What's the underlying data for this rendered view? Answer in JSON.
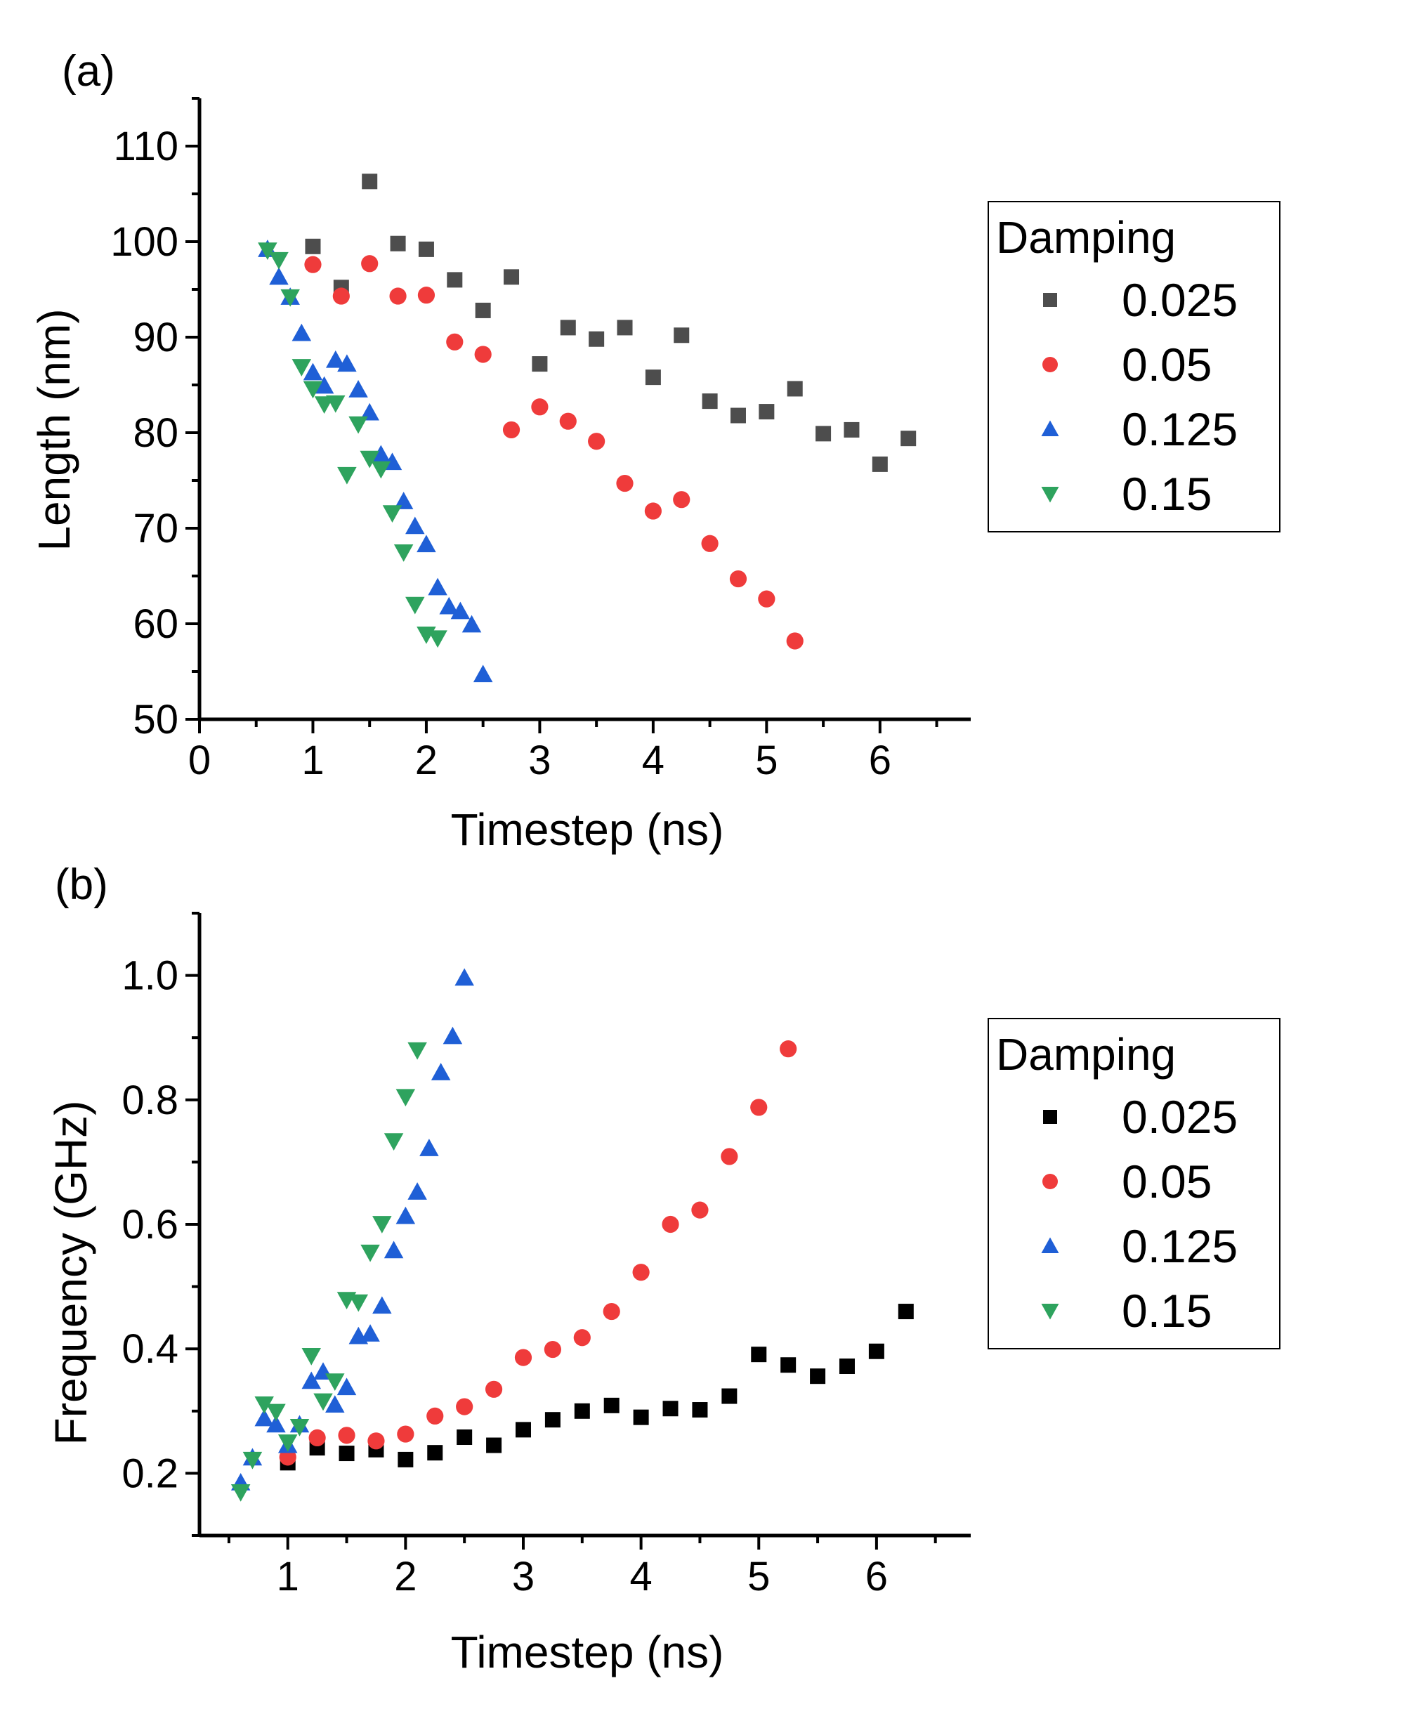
{
  "chart_data": [
    {
      "type": "scatter",
      "panel_label": "(a)",
      "title": "",
      "xlabel": "Timestep (ns)",
      "ylabel": "Length (nm)",
      "xlim": [
        0,
        6.8
      ],
      "ylim": [
        50,
        115
      ],
      "xticks": [
        0,
        1,
        2,
        3,
        4,
        5,
        6
      ],
      "xtick_labels": [
        "0",
        "1",
        "2",
        "3",
        "4",
        "5",
        "6"
      ],
      "yticks": [
        50,
        60,
        70,
        80,
        90,
        100,
        110
      ],
      "ytick_labels": [
        "50",
        "60",
        "70",
        "80",
        "90",
        "100",
        "110"
      ],
      "legend": {
        "title": "Damping",
        "position": "right"
      },
      "series": [
        {
          "name": "0.025",
          "marker": "square",
          "color": "#4d4d4d",
          "x": [
            1.0,
            1.25,
            1.5,
            1.75,
            2.0,
            2.25,
            2.5,
            2.75,
            3.0,
            3.25,
            3.5,
            3.75,
            4.0,
            4.25,
            4.5,
            4.75,
            5.0,
            5.25,
            5.5,
            5.75,
            6.0,
            6.25
          ],
          "y": [
            99.5,
            95.2,
            106.3,
            99.8,
            99.2,
            96.0,
            92.8,
            96.3,
            87.2,
            91.0,
            89.8,
            91.0,
            85.8,
            90.2,
            83.3,
            81.8,
            82.2,
            84.6,
            79.9,
            80.3,
            76.7,
            79.4
          ]
        },
        {
          "name": "0.05",
          "marker": "circle",
          "color": "#ef3b3b",
          "x": [
            1.0,
            1.25,
            1.5,
            1.75,
            2.0,
            2.25,
            2.5,
            2.75,
            3.0,
            3.25,
            3.5,
            3.75,
            4.0,
            4.25,
            4.5,
            4.75,
            5.0,
            5.25
          ],
          "y": [
            97.6,
            94.3,
            97.7,
            94.3,
            94.4,
            89.5,
            88.2,
            80.3,
            82.7,
            81.2,
            79.1,
            74.7,
            71.8,
            73.0,
            68.4,
            64.7,
            62.6,
            58.2
          ]
        },
        {
          "name": "0.125",
          "marker": "triangle-up",
          "color": "#1f5fd6",
          "x": [
            0.6,
            0.7,
            0.8,
            0.9,
            1.0,
            1.1,
            1.2,
            1.3,
            1.4,
            1.5,
            1.6,
            1.7,
            1.8,
            1.9,
            2.0,
            2.1,
            2.2,
            2.3,
            2.4,
            2.5
          ],
          "y": [
            99.2,
            96.3,
            94.2,
            90.4,
            86.3,
            84.9,
            87.6,
            87.2,
            84.5,
            82.1,
            77.7,
            76.9,
            72.8,
            70.2,
            68.3,
            63.8,
            61.8,
            61.3,
            59.9,
            54.7
          ]
        },
        {
          "name": "0.15",
          "marker": "triangle-down",
          "color": "#2ea35e",
          "x": [
            0.6,
            0.7,
            0.8,
            0.9,
            1.0,
            1.1,
            1.2,
            1.3,
            1.4,
            1.5,
            1.6,
            1.7,
            1.8,
            1.9,
            2.0,
            2.1
          ],
          "y": [
            99.1,
            98.1,
            94.2,
            86.9,
            84.6,
            83.0,
            83.1,
            75.6,
            80.9,
            77.3,
            76.2,
            71.6,
            67.5,
            62.0,
            58.9,
            58.5
          ]
        }
      ]
    },
    {
      "type": "scatter",
      "panel_label": "(b)",
      "title": "",
      "xlabel": "Timestep (ns)",
      "ylabel": "Frequency (GHz)",
      "xlim": [
        0.25,
        6.8
      ],
      "ylim": [
        0.1,
        1.1
      ],
      "xticks": [
        1,
        2,
        3,
        4,
        5,
        6
      ],
      "xtick_labels": [
        "1",
        "2",
        "3",
        "4",
        "5",
        "6"
      ],
      "yticks": [
        0.2,
        0.4,
        0.6,
        0.8,
        1.0
      ],
      "ytick_labels": [
        "0.2",
        "0.4",
        "0.6",
        "0.8",
        "1.0"
      ],
      "legend": {
        "title": "Damping",
        "position": "right"
      },
      "series": [
        {
          "name": "0.025",
          "marker": "square",
          "color": "#000000",
          "x": [
            1.0,
            1.25,
            1.5,
            1.75,
            2.0,
            2.25,
            2.5,
            2.75,
            3.0,
            3.25,
            3.5,
            3.75,
            4.0,
            4.25,
            4.5,
            4.75,
            5.0,
            5.25,
            5.5,
            5.75,
            6.0,
            6.25
          ],
          "y": [
            0.217,
            0.241,
            0.232,
            0.238,
            0.222,
            0.233,
            0.258,
            0.245,
            0.27,
            0.286,
            0.3,
            0.309,
            0.29,
            0.304,
            0.302,
            0.324,
            0.391,
            0.374,
            0.356,
            0.372,
            0.396,
            0.46
          ]
        },
        {
          "name": "0.05",
          "marker": "circle",
          "color": "#ef3b3b",
          "x": [
            1.0,
            1.25,
            1.5,
            1.75,
            2.0,
            2.25,
            2.5,
            2.75,
            3.0,
            3.25,
            3.5,
            3.75,
            4.0,
            4.25,
            4.5,
            4.75,
            5.0,
            5.25
          ],
          "y": [
            0.226,
            0.257,
            0.261,
            0.252,
            0.263,
            0.292,
            0.307,
            0.335,
            0.386,
            0.399,
            0.418,
            0.46,
            0.523,
            0.6,
            0.623,
            0.709,
            0.788,
            0.882
          ]
        },
        {
          "name": "0.125",
          "marker": "triangle-up",
          "color": "#1f5fd6",
          "x": [
            0.6,
            0.7,
            0.8,
            0.9,
            1.0,
            1.1,
            1.2,
            1.3,
            1.4,
            1.5,
            1.6,
            1.7,
            1.8,
            1.9,
            2.0,
            2.1,
            2.2,
            2.3,
            2.4,
            2.5
          ],
          "y": [
            0.185,
            0.225,
            0.288,
            0.278,
            0.245,
            0.278,
            0.348,
            0.363,
            0.31,
            0.338,
            0.42,
            0.424,
            0.469,
            0.558,
            0.613,
            0.652,
            0.722,
            0.844,
            0.902,
            0.996
          ]
        },
        {
          "name": "0.15",
          "marker": "triangle-down",
          "color": "#2ea35e",
          "x": [
            0.6,
            0.7,
            0.8,
            0.9,
            1.0,
            1.1,
            1.2,
            1.3,
            1.4,
            1.5,
            1.6,
            1.7,
            1.8,
            1.9,
            2.0,
            2.1
          ],
          "y": [
            0.17,
            0.222,
            0.311,
            0.299,
            0.25,
            0.275,
            0.389,
            0.316,
            0.348,
            0.479,
            0.475,
            0.555,
            0.601,
            0.734,
            0.805,
            0.88
          ]
        }
      ]
    }
  ]
}
